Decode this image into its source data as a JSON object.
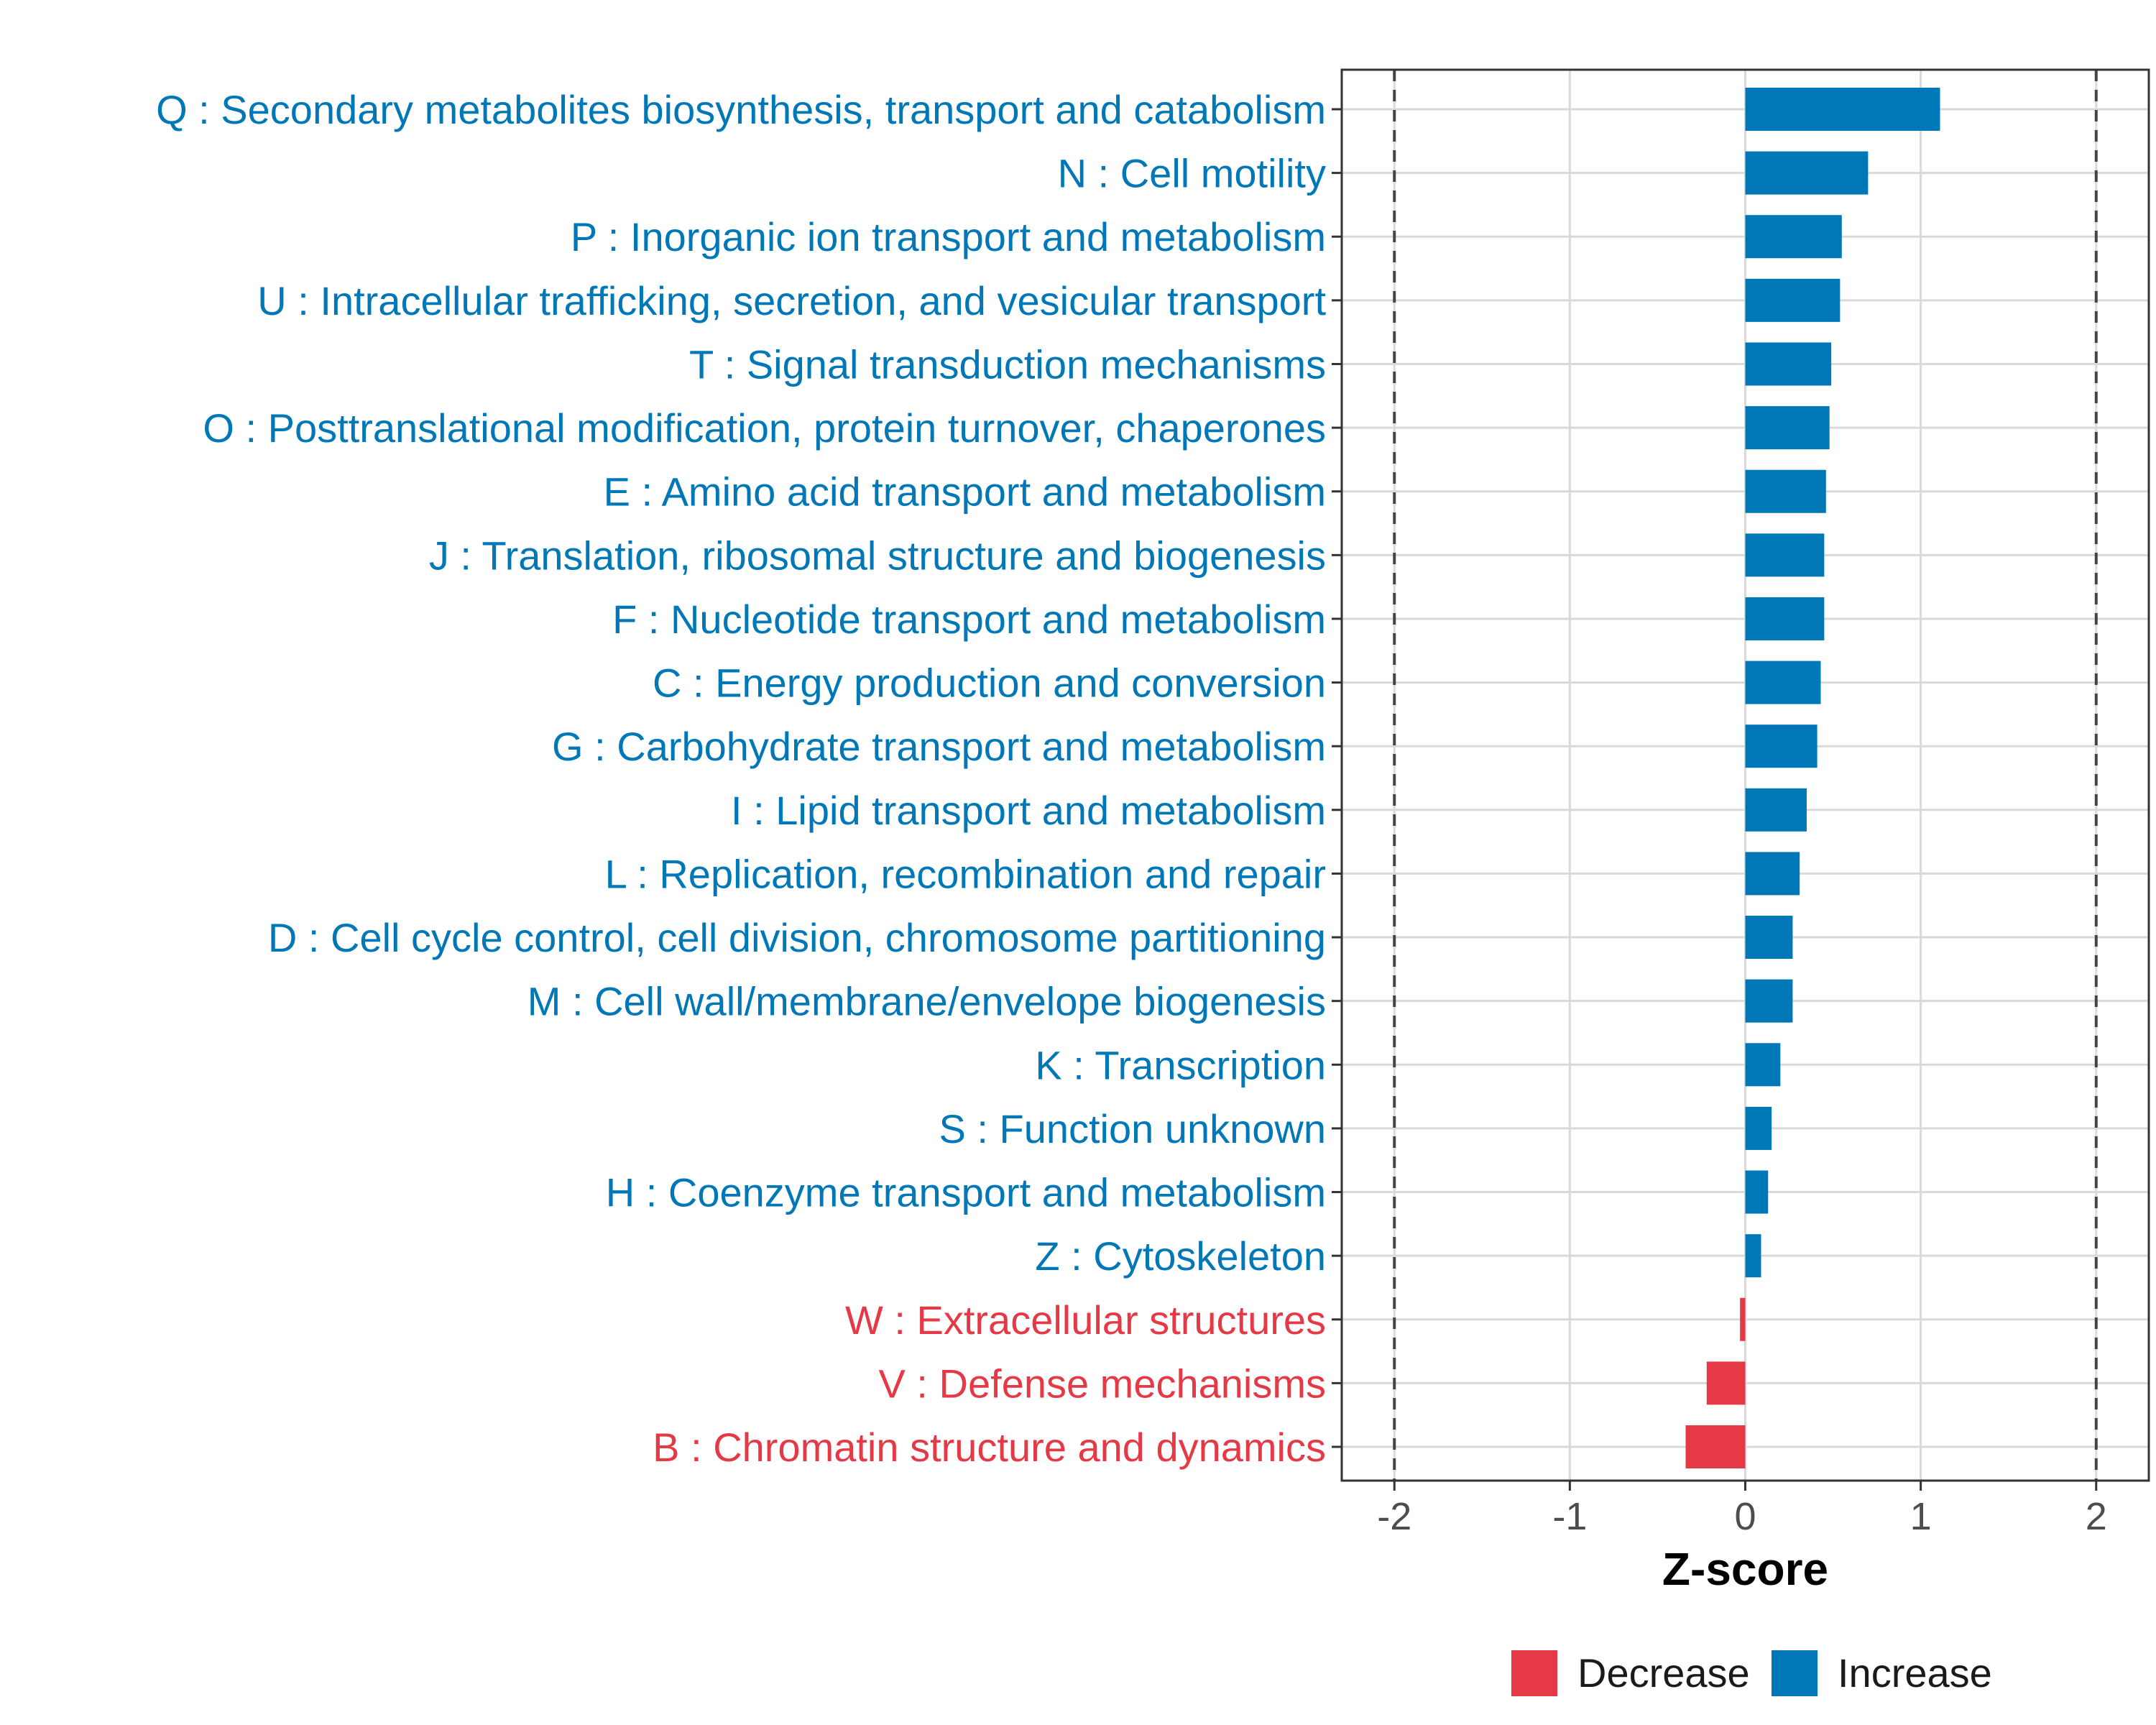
{
  "chart_data": {
    "type": "bar",
    "orientation": "horizontal",
    "xlabel": "Z-score",
    "xlim": [
      -2.3,
      2.3
    ],
    "xticks": [
      -2,
      -1,
      0,
      1,
      2
    ],
    "xtick_labels": [
      "-2",
      "-1",
      "0",
      "1",
      "2"
    ],
    "reference_lines": [
      -2,
      2
    ],
    "grid": true,
    "colors": {
      "Decrease": "#e63946",
      "Increase": "#0077b6"
    },
    "categories": [
      "Q : Secondary metabolites biosynthesis, transport and catabolism",
      "N : Cell motility",
      "P : Inorganic ion transport and metabolism",
      "U : Intracellular trafficking, secretion, and vesicular transport",
      "T : Signal transduction mechanisms",
      "O : Posttranslational modification, protein turnover, chaperones",
      "E : Amino acid transport and metabolism",
      "J : Translation, ribosomal structure and biogenesis",
      "F : Nucleotide transport and metabolism",
      "C : Energy production and conversion",
      "G : Carbohydrate transport and metabolism",
      "I : Lipid transport and metabolism",
      "L : Replication, recombination and repair",
      "D : Cell cycle control, cell division, chromosome partitioning",
      "M : Cell wall/membrane/envelope biogenesis",
      "K : Transcription",
      "S : Function unknown",
      "H : Coenzyme transport and metabolism",
      "Z : Cytoskeleton",
      "W : Extracellular structures",
      "V : Defense mechanisms",
      "B : Chromatin structure and dynamics"
    ],
    "values": [
      1.11,
      0.7,
      0.55,
      0.54,
      0.49,
      0.48,
      0.46,
      0.45,
      0.45,
      0.43,
      0.41,
      0.35,
      0.31,
      0.27,
      0.27,
      0.2,
      0.15,
      0.13,
      0.09,
      -0.03,
      -0.22,
      -0.34
    ],
    "groups": [
      "Increase",
      "Increase",
      "Increase",
      "Increase",
      "Increase",
      "Increase",
      "Increase",
      "Increase",
      "Increase",
      "Increase",
      "Increase",
      "Increase",
      "Increase",
      "Increase",
      "Increase",
      "Increase",
      "Increase",
      "Increase",
      "Increase",
      "Decrease",
      "Decrease",
      "Decrease"
    ],
    "legend": {
      "position": "bottom",
      "entries": [
        {
          "label": "Decrease",
          "color": "#e63946"
        },
        {
          "label": "Increase",
          "color": "#0077b6"
        }
      ]
    }
  }
}
